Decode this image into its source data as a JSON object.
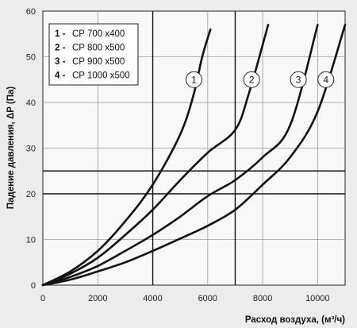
{
  "chart_data": {
    "type": "line",
    "xlabel": "Расход воздуха, (м³/ч)",
    "ylabel": "Падение давления, ΔP (Па)",
    "xlim": [
      0,
      11000
    ],
    "ylim": [
      0,
      60
    ],
    "x_ticks": [
      0,
      2000,
      4000,
      6000,
      8000,
      10000
    ],
    "y_ticks": [
      0,
      10,
      20,
      30,
      40,
      50,
      60
    ],
    "x_tick_labels": [
      "0",
      "2000",
      "4000",
      "6000",
      "8000",
      "10000"
    ],
    "y_tick_labels": [
      "0",
      "10",
      "20",
      "30",
      "40",
      "50",
      "60"
    ],
    "grid": "major",
    "highlight_lines": {
      "x": [
        4000,
        7000
      ],
      "y": [
        20,
        25
      ]
    },
    "legend_position": "top-left",
    "legend": [
      {
        "num": "1 -",
        "text": "CP  700 x400"
      },
      {
        "num": "2 -",
        "text": "CP  800 x500"
      },
      {
        "num": "3 -",
        "text": "CP  900 x500"
      },
      {
        "num": "4 -",
        "text": "CP  1000 x500"
      }
    ],
    "series": [
      {
        "name": "1",
        "label_at": [
          5500,
          45
        ],
        "points": [
          [
            0,
            0
          ],
          [
            1000,
            3
          ],
          [
            2000,
            7.5
          ],
          [
            3000,
            14
          ],
          [
            4000,
            22
          ],
          [
            5000,
            33
          ],
          [
            5500,
            42
          ],
          [
            5800,
            50
          ],
          [
            6100,
            56
          ]
        ]
      },
      {
        "name": "2",
        "label_at": [
          7600,
          45
        ],
        "points": [
          [
            0,
            0
          ],
          [
            1000,
            2.5
          ],
          [
            2000,
            6
          ],
          [
            3000,
            11
          ],
          [
            4000,
            16.5
          ],
          [
            5000,
            23
          ],
          [
            6000,
            29
          ],
          [
            7000,
            34
          ],
          [
            7500,
            42
          ],
          [
            8200,
            57
          ]
        ]
      },
      {
        "name": "3",
        "label_at": [
          9300,
          45
        ],
        "points": [
          [
            0,
            0
          ],
          [
            1000,
            1.8
          ],
          [
            2000,
            4.2
          ],
          [
            3000,
            7.5
          ],
          [
            4000,
            11
          ],
          [
            5000,
            15
          ],
          [
            6000,
            19.5
          ],
          [
            7000,
            23
          ],
          [
            8000,
            28
          ],
          [
            9000,
            35
          ],
          [
            10000,
            57
          ]
        ]
      },
      {
        "name": "4",
        "label_at": [
          10300,
          45
        ],
        "points": [
          [
            0,
            0
          ],
          [
            1000,
            1.2
          ],
          [
            2000,
            3
          ],
          [
            3000,
            5
          ],
          [
            4000,
            7.5
          ],
          [
            5000,
            10.2
          ],
          [
            6000,
            13
          ],
          [
            7000,
            16.5
          ],
          [
            8000,
            22
          ],
          [
            9000,
            28
          ],
          [
            10000,
            38
          ],
          [
            11000,
            57
          ]
        ]
      }
    ]
  }
}
